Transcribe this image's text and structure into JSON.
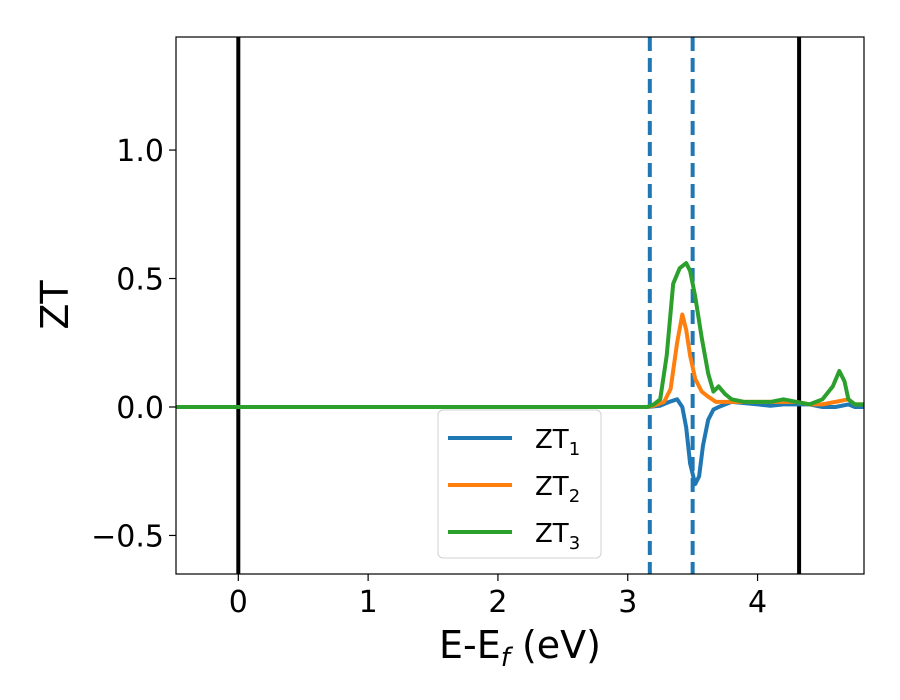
{
  "chart_data": {
    "type": "line",
    "xlabel": "E-E",
    "xlabel_sub": "f",
    "xlabel_unit": " (eV)",
    "ylabel": "ZT",
    "xlim": [
      -0.48,
      4.82
    ],
    "ylim": [
      -0.65,
      1.44
    ],
    "xticks": [
      0,
      1,
      2,
      3,
      4
    ],
    "xtick_labels": [
      "0",
      "1",
      "2",
      "3",
      "4"
    ],
    "yticks": [
      -0.5,
      0.0,
      0.5,
      1.0
    ],
    "ytick_labels": [
      "−0.5",
      "0.0",
      "0.5",
      "1.0"
    ],
    "grid": false,
    "legend_position": "lower-center",
    "vlines_solid": [
      0.0,
      4.32
    ],
    "vlines_dashed": [
      3.17,
      3.5
    ],
    "series": [
      {
        "name": "ZT",
        "sub": "1",
        "color": "#1f77b4",
        "x": [
          -0.48,
          3.0,
          3.15,
          3.25,
          3.32,
          3.38,
          3.42,
          3.45,
          3.48,
          3.52,
          3.55,
          3.58,
          3.62,
          3.66,
          3.7,
          3.75,
          3.8,
          3.9,
          4.0,
          4.1,
          4.2,
          4.3,
          4.4,
          4.5,
          4.6,
          4.7,
          4.75,
          4.82
        ],
        "y": [
          0.0,
          0.0,
          0.0,
          0.005,
          0.02,
          0.03,
          0.0,
          -0.08,
          -0.22,
          -0.3,
          -0.27,
          -0.15,
          -0.05,
          -0.01,
          0.0,
          0.01,
          0.02,
          0.015,
          0.01,
          0.005,
          0.01,
          0.01,
          0.01,
          0.0,
          0.0,
          0.01,
          0.0,
          0.0
        ]
      },
      {
        "name": "ZT",
        "sub": "2",
        "color": "#ff7f0e",
        "x": [
          -0.48,
          3.0,
          3.15,
          3.2,
          3.28,
          3.33,
          3.38,
          3.42,
          3.45,
          3.48,
          3.52,
          3.57,
          3.62,
          3.68,
          3.75,
          3.85,
          4.0,
          4.2,
          4.3,
          4.4,
          4.5,
          4.6,
          4.7,
          4.75,
          4.82
        ],
        "y": [
          0.0,
          0.0,
          0.0,
          0.005,
          0.02,
          0.07,
          0.25,
          0.36,
          0.3,
          0.2,
          0.11,
          0.06,
          0.04,
          0.02,
          0.02,
          0.02,
          0.02,
          0.02,
          0.02,
          0.01,
          0.01,
          0.02,
          0.03,
          0.01,
          0.01
        ]
      },
      {
        "name": "ZT",
        "sub": "3",
        "color": "#2ca02c",
        "x": [
          -0.48,
          3.0,
          3.15,
          3.2,
          3.25,
          3.3,
          3.35,
          3.4,
          3.45,
          3.48,
          3.52,
          3.57,
          3.62,
          3.66,
          3.7,
          3.75,
          3.8,
          3.9,
          4.0,
          4.1,
          4.2,
          4.3,
          4.4,
          4.5,
          4.58,
          4.63,
          4.67,
          4.7,
          4.75,
          4.82
        ],
        "y": [
          0.0,
          0.0,
          0.0,
          0.01,
          0.03,
          0.2,
          0.48,
          0.54,
          0.56,
          0.53,
          0.43,
          0.27,
          0.13,
          0.06,
          0.08,
          0.05,
          0.03,
          0.02,
          0.02,
          0.02,
          0.03,
          0.02,
          0.01,
          0.03,
          0.08,
          0.14,
          0.1,
          0.03,
          0.01,
          0.01
        ]
      }
    ]
  }
}
